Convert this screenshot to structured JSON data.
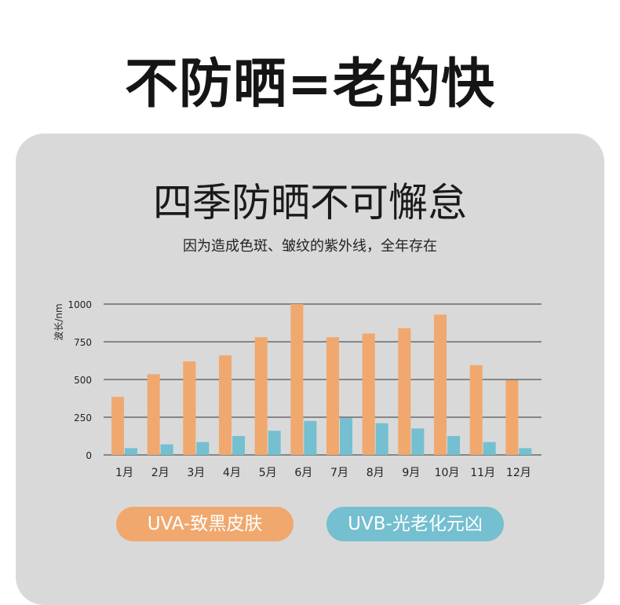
{
  "headline": "不防晒=老的快",
  "subtitle": "四季防晒不可懈怠",
  "caption": "因为造成色斑、皱纹的紫外线，全年存在",
  "colors": {
    "uva": "#f0a86e",
    "uvb": "#74bfd0",
    "card": "#d9d9d9",
    "grid": "#333333"
  },
  "legend": {
    "uva_label": "UVA-致黑皮肤",
    "uvb_label": "UVB-光老化元凶"
  },
  "chart_data": {
    "type": "bar",
    "ylabel": "波长/nm",
    "ylim": [
      0,
      1000
    ],
    "yticks": [
      0,
      250,
      500,
      750,
      1000
    ],
    "grid": true,
    "categories": [
      "1月",
      "2月",
      "3月",
      "4月",
      "5月",
      "6月",
      "7月",
      "8月",
      "9月",
      "10月",
      "11月",
      "12月"
    ],
    "series": [
      {
        "name": "UVA-致黑皮肤",
        "values": [
          385,
          535,
          620,
          660,
          780,
          1000,
          780,
          805,
          840,
          930,
          595,
          495
        ]
      },
      {
        "name": "UVB-光老化元凶",
        "values": [
          45,
          70,
          85,
          125,
          160,
          225,
          245,
          210,
          175,
          125,
          85,
          45
        ]
      }
    ]
  }
}
